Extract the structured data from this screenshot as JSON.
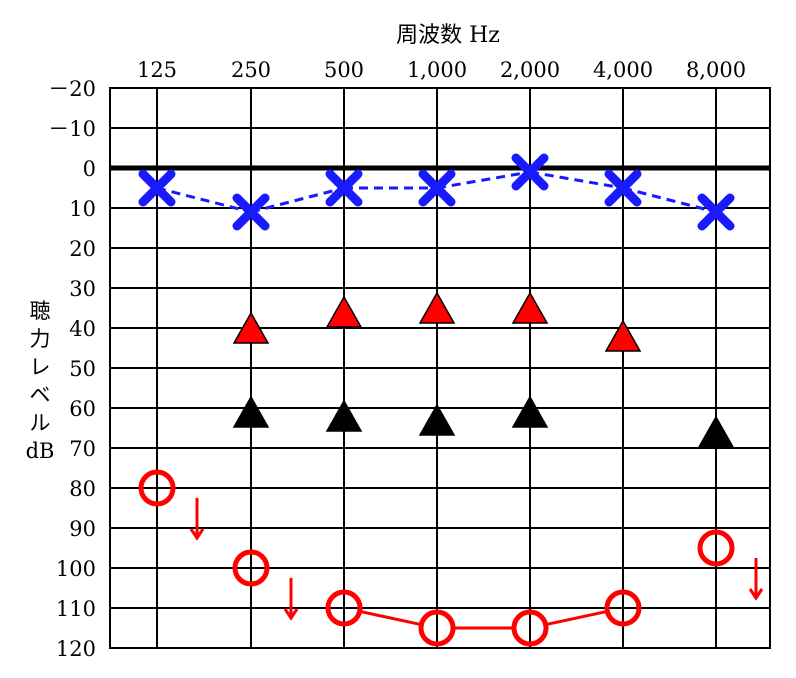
{
  "chart_data": {
    "type": "scatter",
    "title": "周波数 Hz",
    "xlabel": "周波数 Hz",
    "ylabel_lines": [
      "聴",
      "力",
      "レ",
      "ベ",
      "ル",
      "dB"
    ],
    "x_categories": [
      "125",
      "250",
      "500",
      "1,000",
      "2,000",
      "4,000",
      "8,000"
    ],
    "y_ticks": [
      "－20",
      "－10",
      "0",
      "10",
      "20",
      "30",
      "40",
      "50",
      "60",
      "70",
      "80",
      "90",
      "100",
      "110",
      "120"
    ],
    "y_range": [
      -20,
      120
    ],
    "y_inverted": true,
    "grid": true,
    "series": [
      {
        "marker": "x",
        "color": "#1a1aff",
        "line": "dashed",
        "values": [
          5,
          11,
          5,
          5,
          1,
          5,
          11
        ]
      },
      {
        "marker": "triangle",
        "color": "#ff0000",
        "line": "none",
        "values": [
          null,
          40,
          36,
          35,
          35,
          42,
          null
        ]
      },
      {
        "marker": "triangle",
        "color": "#000000",
        "line": "none",
        "values": [
          null,
          61,
          62,
          63,
          61,
          null,
          66
        ]
      },
      {
        "marker": "circle",
        "color": "#ff0000",
        "line": "solid",
        "values": [
          80,
          100,
          110,
          115,
          115,
          110,
          95
        ],
        "no_response": [
          true,
          true,
          false,
          false,
          false,
          false,
          true
        ],
        "connected": [
          false,
          false,
          true,
          true,
          true,
          true,
          false
        ]
      }
    ]
  }
}
